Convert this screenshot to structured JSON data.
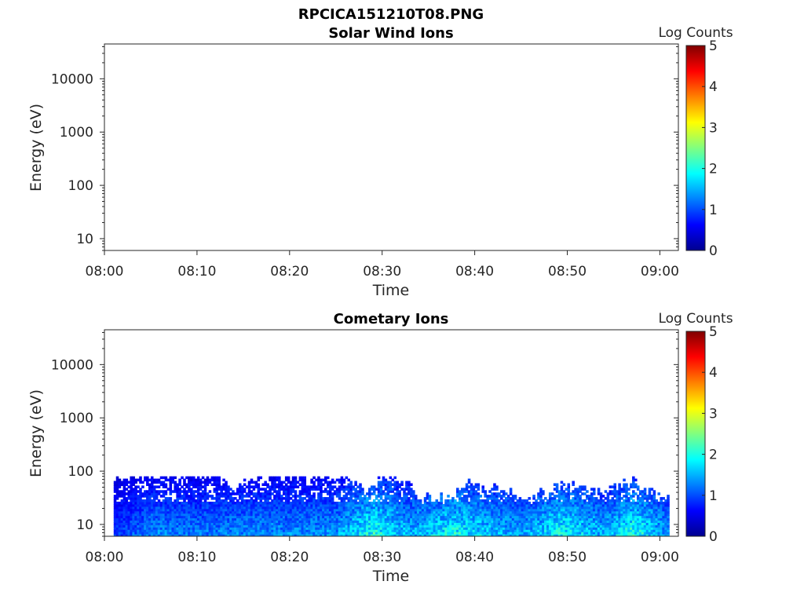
{
  "figure_title": "RPCICA151210T08.PNG",
  "colorbar_colors": [
    "#00008f",
    "#0000ff",
    "#0080ff",
    "#00ffff",
    "#80ff80",
    "#ffff00",
    "#ff8000",
    "#ff0000",
    "#800000"
  ],
  "chart_data": [
    {
      "type": "heatmap",
      "title": "Solar Wind Ions",
      "xlabel": "Time",
      "ylabel": "Energy (eV)",
      "yscale": "log",
      "xlim": [
        "08:00",
        "09:02"
      ],
      "ylim": [
        6,
        45000
      ],
      "x_ticks": [
        "08:00",
        "08:10",
        "08:20",
        "08:30",
        "08:40",
        "08:50",
        "09:00"
      ],
      "y_ticks": [
        {
          "value": 10,
          "label": "10"
        },
        {
          "value": 100,
          "label": "100"
        },
        {
          "value": 1000,
          "label": "1000"
        },
        {
          "value": 10000,
          "label": "10000"
        }
      ],
      "colorbar": {
        "label": "Log Counts",
        "min": 0,
        "max": 5,
        "ticks": [
          "0",
          "1",
          "2",
          "3",
          "4",
          "5"
        ]
      },
      "data_present": false
    },
    {
      "type": "heatmap",
      "title": "Cometary Ions",
      "xlabel": "Time",
      "ylabel": "Energy (eV)",
      "yscale": "log",
      "xlim": [
        "08:00",
        "09:02"
      ],
      "ylim": [
        6,
        45000
      ],
      "x_ticks": [
        "08:00",
        "08:10",
        "08:20",
        "08:30",
        "08:40",
        "08:50",
        "09:00"
      ],
      "y_ticks": [
        {
          "value": 10,
          "label": "10"
        },
        {
          "value": 100,
          "label": "100"
        },
        {
          "value": 1000,
          "label": "1000"
        },
        {
          "value": 10000,
          "label": "10000"
        }
      ],
      "colorbar": {
        "label": "Log Counts",
        "min": 0,
        "max": 5,
        "ticks": [
          "0",
          "1",
          "2",
          "3",
          "4",
          "5"
        ]
      },
      "data_present": true,
      "data_time_range": [
        "08:01",
        "09:01"
      ],
      "data_energy_range_eV": [
        6,
        80
      ],
      "peak_log_counts_by_time": [
        {
          "time": "08:01",
          "log_counts": 1.0
        },
        {
          "time": "08:05",
          "log_counts": 1.5
        },
        {
          "time": "08:10",
          "log_counts": 1.4
        },
        {
          "time": "08:15",
          "log_counts": 1.5
        },
        {
          "time": "08:20",
          "log_counts": 1.5
        },
        {
          "time": "08:25",
          "log_counts": 1.6
        },
        {
          "time": "08:29",
          "log_counts": 2.3
        },
        {
          "time": "08:33",
          "log_counts": 1.7
        },
        {
          "time": "08:38",
          "log_counts": 2.2
        },
        {
          "time": "08:42",
          "log_counts": 1.8
        },
        {
          "time": "08:45",
          "log_counts": 1.6
        },
        {
          "time": "08:49",
          "log_counts": 2.2
        },
        {
          "time": "08:54",
          "log_counts": 1.7
        },
        {
          "time": "08:57",
          "log_counts": 2.3
        },
        {
          "time": "09:01",
          "log_counts": 1.5
        }
      ],
      "upper_energy_envelope_eV": [
        {
          "time": "08:01",
          "energy": 80
        },
        {
          "time": "08:03",
          "energy": 80
        },
        {
          "time": "08:12",
          "energy": 80
        },
        {
          "time": "08:14",
          "energy": 40
        },
        {
          "time": "08:16",
          "energy": 80
        },
        {
          "time": "08:26",
          "energy": 80
        },
        {
          "time": "08:28",
          "energy": 40
        },
        {
          "time": "08:31",
          "energy": 80
        },
        {
          "time": "08:34",
          "energy": 30
        },
        {
          "time": "08:37",
          "energy": 30
        },
        {
          "time": "08:39",
          "energy": 60
        },
        {
          "time": "08:43",
          "energy": 40
        },
        {
          "time": "08:46",
          "energy": 30
        },
        {
          "time": "08:50",
          "energy": 60
        },
        {
          "time": "08:53",
          "energy": 40
        },
        {
          "time": "08:57",
          "energy": 60
        },
        {
          "time": "09:00",
          "energy": 30
        }
      ]
    }
  ]
}
